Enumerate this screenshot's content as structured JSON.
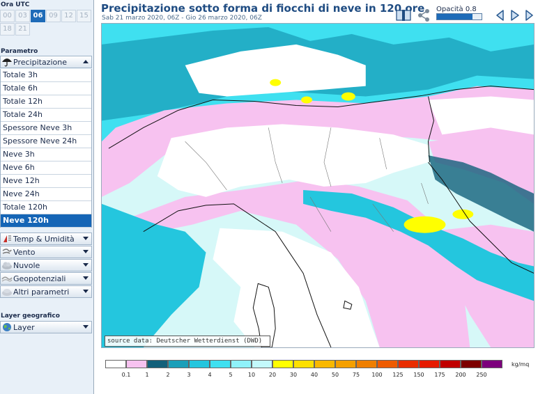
{
  "sidebar": {
    "time_label": "Ora UTC",
    "hours": [
      "00",
      "03",
      "06",
      "09",
      "12",
      "15",
      "18",
      "21"
    ],
    "selected_hour": "06",
    "param_label": "Parametro",
    "precip_header": "Precipitazione",
    "param_items": [
      "Totale 3h",
      "Totale 6h",
      "Totale 12h",
      "Totale 24h",
      "Spessore Neve 3h",
      "Spessore Neve 24h",
      "Neve 3h",
      "Neve 6h",
      "Neve 12h",
      "Neve 24h",
      "Totale 120h",
      "Neve 120h"
    ],
    "selected_param": "Neve 120h",
    "groups": [
      "Temp & Umidità",
      "Vento",
      "Nuvole",
      "Geopotenziali",
      "Altri parametri"
    ],
    "geo_label": "Layer geografico",
    "layer_header": "Layer"
  },
  "header": {
    "title": "Precipitazione sotto forma di fiocchi di neve in 120 ore",
    "subtitle": "Sab 21 marzo 2020, 06Z - Gio 26 marzo 2020, 06Z",
    "opacity_label": "Opacità 0.8",
    "opacity_value": 0.8
  },
  "map": {
    "source": "source data: Deutscher Wetterdienst (DWD)"
  },
  "legend": {
    "unit": "kg/mq",
    "colors": [
      "#ffffff",
      "#f7c2f0",
      "#12607a",
      "#1b9fb9",
      "#24c6de",
      "#3fe0f0",
      "#8ff2fa",
      "#c3f9fb",
      "#ffff00",
      "#fde000",
      "#f9b800",
      "#f5a000",
      "#ef7f00",
      "#ee5b00",
      "#e92d00",
      "#e61a00",
      "#c00000",
      "#7d0000",
      "#7c007c"
    ],
    "labels": [
      "0.1",
      "1",
      "2",
      "3",
      "4",
      "5",
      "10",
      "20",
      "30",
      "40",
      "50",
      "75",
      "100",
      "125",
      "150",
      "175",
      "200",
      "250"
    ]
  },
  "icons": {
    "book": "book-icon",
    "share": "share-icon",
    "prev": "prev-icon",
    "play": "play-icon",
    "next": "next-icon"
  }
}
